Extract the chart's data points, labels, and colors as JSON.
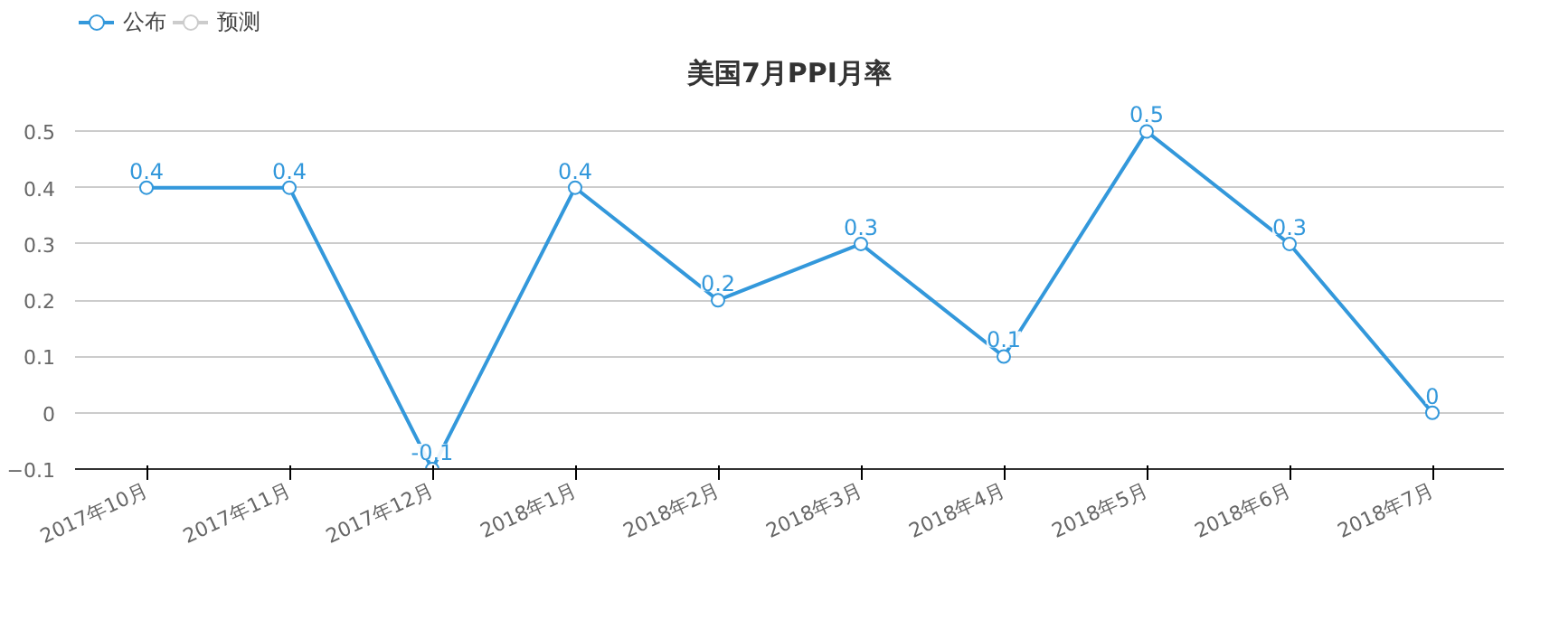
{
  "chart_data": {
    "type": "line",
    "title": "美国7月PPI月率",
    "categories": [
      "2017年10月",
      "2017年11月",
      "2017年12月",
      "2018年1月",
      "2018年2月",
      "2018年3月",
      "2018年4月",
      "2018年5月",
      "2018年6月",
      "2018年7月"
    ],
    "series": [
      {
        "name": "公布",
        "color": "#3398db",
        "values": [
          0.4,
          0.4,
          -0.1,
          0.4,
          0.2,
          0.3,
          0.1,
          0.5,
          0.3,
          0
        ]
      },
      {
        "name": "预测",
        "color": "#cccccc",
        "values": [
          null,
          null,
          null,
          null,
          null,
          null,
          null,
          null,
          null,
          null
        ]
      }
    ],
    "ylim": [
      -0.1,
      0.5
    ],
    "yticks": [
      -0.1,
      0,
      0.1,
      0.2,
      0.3,
      0.4,
      0.5
    ],
    "grid": "y",
    "legend": "top left",
    "marker": "circle",
    "line_style": "solid",
    "data_labels": true
  }
}
